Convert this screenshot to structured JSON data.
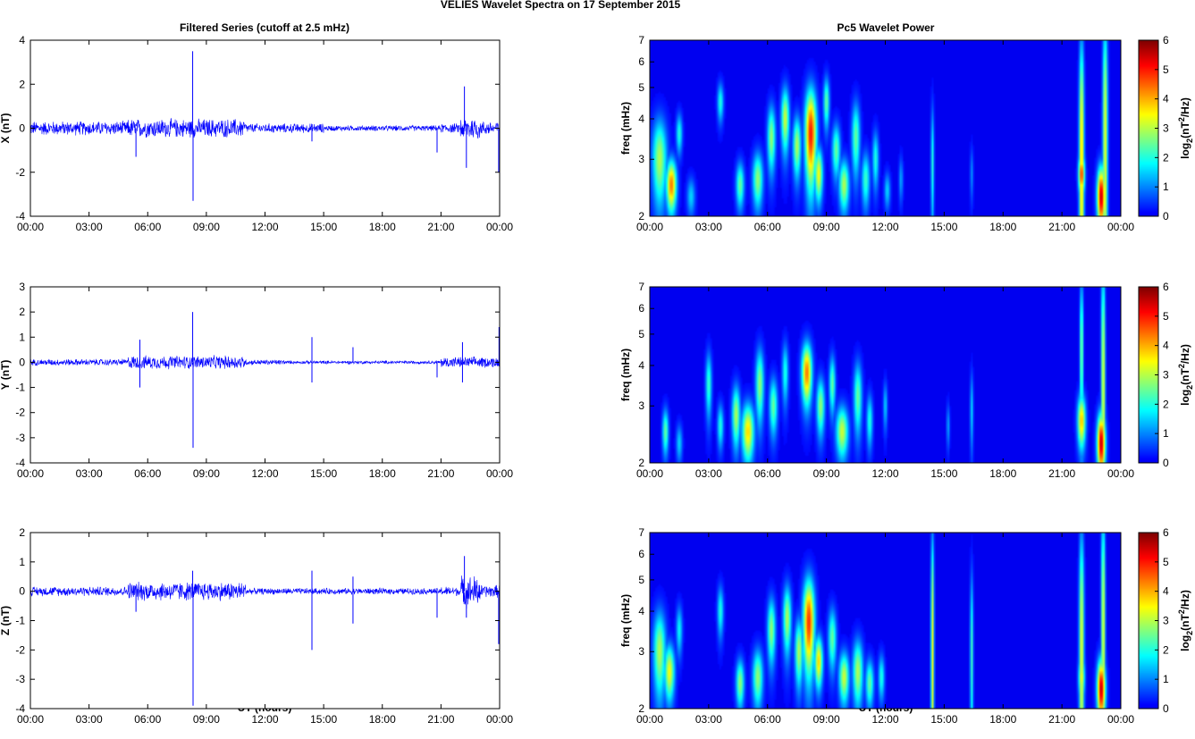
{
  "figure": {
    "suptitle": "VELIES Wavelet Spectra on 17 September 2015",
    "left_title": "Filtered Series (cutoff at 2.5 mHz)",
    "right_title": "Pc5 Wavelet Power",
    "xlabel": "UT (hours)"
  },
  "colors": {
    "trace": "#0000ff",
    "background_low": "#00008f",
    "axes": "#000000"
  },
  "chart_data": [
    {
      "type": "line",
      "ylabel": "X (nT)",
      "xlim_hours": [
        0,
        24
      ],
      "ylim": [
        -4,
        4
      ],
      "yticks": [
        -4,
        -2,
        0,
        2,
        4
      ],
      "xtick_labels": [
        "00:00",
        "03:00",
        "06:00",
        "09:00",
        "12:00",
        "15:00",
        "18:00",
        "21:00",
        "00:00"
      ],
      "noise_amplitude": [
        {
          "from": 0,
          "to": 5,
          "amp": 0.3
        },
        {
          "from": 5,
          "to": 11,
          "amp": 0.4
        },
        {
          "from": 11,
          "to": 15,
          "amp": 0.2
        },
        {
          "from": 15,
          "to": 21,
          "amp": 0.12
        },
        {
          "from": 21,
          "to": 22,
          "amp": 0.2
        },
        {
          "from": 22,
          "to": 23,
          "amp": 0.5
        },
        {
          "from": 23,
          "to": 24,
          "amp": 0.3
        }
      ],
      "spikes": [
        {
          "t": 5.4,
          "v": -1.3
        },
        {
          "t": 8.3,
          "v": 3.5
        },
        {
          "t": 8.32,
          "v": -3.3
        },
        {
          "t": 14.4,
          "v": -0.6
        },
        {
          "t": 20.8,
          "v": -1.1
        },
        {
          "t": 22.2,
          "v": 1.9
        },
        {
          "t": 22.3,
          "v": -1.8
        },
        {
          "t": 23.95,
          "v": -2.0
        }
      ]
    },
    {
      "type": "line",
      "ylabel": "Y (nT)",
      "xlim_hours": [
        0,
        24
      ],
      "ylim": [
        -4,
        3
      ],
      "yticks": [
        -4,
        -3,
        -2,
        -1,
        0,
        1,
        2,
        3
      ],
      "xtick_labels": [
        "00:00",
        "03:00",
        "06:00",
        "09:00",
        "12:00",
        "15:00",
        "18:00",
        "21:00",
        "00:00"
      ],
      "noise_amplitude": [
        {
          "from": 0,
          "to": 5,
          "amp": 0.12
        },
        {
          "from": 5,
          "to": 11,
          "amp": 0.25
        },
        {
          "from": 11,
          "to": 13,
          "amp": 0.1
        },
        {
          "from": 13,
          "to": 21,
          "amp": 0.06
        },
        {
          "from": 21,
          "to": 24,
          "amp": 0.2
        }
      ],
      "spikes": [
        {
          "t": 5.6,
          "v": 0.9
        },
        {
          "t": 5.6,
          "v": -1.0
        },
        {
          "t": 8.3,
          "v": 2.0
        },
        {
          "t": 8.32,
          "v": -3.4
        },
        {
          "t": 14.4,
          "v": 1.0
        },
        {
          "t": 14.4,
          "v": -0.8
        },
        {
          "t": 16.5,
          "v": 0.6
        },
        {
          "t": 20.8,
          "v": -0.6
        },
        {
          "t": 22.1,
          "v": 0.8
        },
        {
          "t": 22.1,
          "v": -0.8
        },
        {
          "t": 23.97,
          "v": 1.4
        }
      ]
    },
    {
      "type": "line",
      "ylabel": "Z (nT)",
      "xlim_hours": [
        0,
        24
      ],
      "ylim": [
        -4,
        2
      ],
      "yticks": [
        -4,
        -3,
        -2,
        -1,
        0,
        1,
        2
      ],
      "xtick_labels": [
        "00:00",
        "03:00",
        "06:00",
        "09:00",
        "12:00",
        "15:00",
        "18:00",
        "21:00",
        "00:00"
      ],
      "noise_amplitude": [
        {
          "from": 0,
          "to": 5,
          "amp": 0.15
        },
        {
          "from": 5,
          "to": 11,
          "amp": 0.3
        },
        {
          "from": 11,
          "to": 21,
          "amp": 0.1
        },
        {
          "from": 21,
          "to": 22,
          "amp": 0.15
        },
        {
          "from": 22,
          "to": 23,
          "amp": 0.5
        },
        {
          "from": 23,
          "to": 24,
          "amp": 0.2
        }
      ],
      "spikes": [
        {
          "t": 5.4,
          "v": -0.7
        },
        {
          "t": 8.3,
          "v": 0.7
        },
        {
          "t": 8.32,
          "v": -3.9
        },
        {
          "t": 14.4,
          "v": 0.7
        },
        {
          "t": 14.4,
          "v": -2.0
        },
        {
          "t": 16.5,
          "v": 0.5
        },
        {
          "t": 16.5,
          "v": -1.1
        },
        {
          "t": 20.8,
          "v": -0.9
        },
        {
          "t": 22.2,
          "v": 1.2
        },
        {
          "t": 22.3,
          "v": -0.9
        },
        {
          "t": 23.95,
          "v": -1.8
        }
      ]
    },
    {
      "type": "heatmap",
      "ylabel": "freq (mHz)",
      "colorbar_label": "log2(nT2/Hz)",
      "xlim_hours": [
        0,
        24
      ],
      "ylim_mhz": [
        2,
        7
      ],
      "yscale": "log",
      "yticks": [
        2,
        3,
        4,
        5,
        6,
        7
      ],
      "clim": [
        0,
        6
      ],
      "colorbar_ticks": [
        0,
        1,
        2,
        3,
        4,
        5,
        6
      ],
      "xtick_labels": [
        "00:00",
        "03:00",
        "06:00",
        "09:00",
        "12:00",
        "15:00",
        "18:00",
        "21:00",
        "00:00"
      ],
      "blobs": [
        {
          "t": 0.5,
          "f": 3.0,
          "dt": 0.35,
          "df": 0.9,
          "p": 3.0
        },
        {
          "t": 1.1,
          "f": 2.5,
          "dt": 0.25,
          "df": 0.45,
          "p": 4.5
        },
        {
          "t": 1.5,
          "f": 3.6,
          "dt": 0.15,
          "df": 0.5,
          "p": 2.0
        },
        {
          "t": 2.1,
          "f": 2.3,
          "dt": 0.2,
          "df": 0.3,
          "p": 1.5
        },
        {
          "t": 3.6,
          "f": 4.5,
          "dt": 0.15,
          "df": 0.6,
          "p": 2.0
        },
        {
          "t": 4.6,
          "f": 2.5,
          "dt": 0.2,
          "df": 0.4,
          "p": 2.5
        },
        {
          "t": 5.5,
          "f": 2.6,
          "dt": 0.25,
          "df": 0.5,
          "p": 2.8
        },
        {
          "t": 6.2,
          "f": 3.5,
          "dt": 0.2,
          "df": 0.8,
          "p": 2.8
        },
        {
          "t": 6.9,
          "f": 4.0,
          "dt": 0.2,
          "df": 0.9,
          "p": 3.2
        },
        {
          "t": 7.5,
          "f": 3.3,
          "dt": 0.2,
          "df": 0.7,
          "p": 3.0
        },
        {
          "t": 8.2,
          "f": 3.6,
          "dt": 0.28,
          "df": 1.2,
          "p": 5.2
        },
        {
          "t": 8.6,
          "f": 2.7,
          "dt": 0.2,
          "df": 0.5,
          "p": 3.5
        },
        {
          "t": 9.0,
          "f": 4.5,
          "dt": 0.15,
          "df": 0.8,
          "p": 2.5
        },
        {
          "t": 9.5,
          "f": 3.2,
          "dt": 0.2,
          "df": 0.6,
          "p": 2.5
        },
        {
          "t": 9.9,
          "f": 2.5,
          "dt": 0.25,
          "df": 0.45,
          "p": 3.0
        },
        {
          "t": 10.5,
          "f": 3.5,
          "dt": 0.2,
          "df": 0.9,
          "p": 2.5
        },
        {
          "t": 11.0,
          "f": 2.6,
          "dt": 0.2,
          "df": 0.5,
          "p": 2.2
        },
        {
          "t": 11.5,
          "f": 3.0,
          "dt": 0.15,
          "df": 0.6,
          "p": 2.0
        },
        {
          "t": 12.1,
          "f": 2.4,
          "dt": 0.15,
          "df": 0.3,
          "p": 1.5
        },
        {
          "t": 12.8,
          "f": 2.6,
          "dt": 0.1,
          "df": 0.4,
          "p": 1.2
        },
        {
          "t": 14.4,
          "f": 2.9,
          "dt": 0.08,
          "df": 1.3,
          "p": 2.0
        },
        {
          "t": 16.4,
          "f": 2.7,
          "dt": 0.08,
          "df": 0.5,
          "p": 1.0
        },
        {
          "t": 22.0,
          "f": 3.0,
          "dt": 0.12,
          "df": 3.5,
          "p": 4.0
        },
        {
          "t": 22.0,
          "f": 2.7,
          "dt": 0.15,
          "df": 0.4,
          "p": 5.0
        },
        {
          "t": 23.2,
          "f": 3.5,
          "dt": 0.12,
          "df": 4.0,
          "p": 3.5
        },
        {
          "t": 23.0,
          "f": 2.3,
          "dt": 0.2,
          "df": 0.5,
          "p": 5.8
        }
      ]
    },
    {
      "type": "heatmap",
      "ylabel": "freq (mHz)",
      "colorbar_label": "log2(nT2/Hz)",
      "xlim_hours": [
        0,
        24
      ],
      "ylim_mhz": [
        2,
        7
      ],
      "yscale": "log",
      "yticks": [
        2,
        3,
        4,
        5,
        6,
        7
      ],
      "clim": [
        0,
        6
      ],
      "colorbar_ticks": [
        0,
        1,
        2,
        3,
        4,
        5,
        6
      ],
      "xtick_labels": [
        "00:00",
        "03:00",
        "06:00",
        "09:00",
        "12:00",
        "15:00",
        "18:00",
        "21:00",
        "00:00"
      ],
      "blobs": [
        {
          "t": 0.8,
          "f": 2.5,
          "dt": 0.15,
          "df": 0.4,
          "p": 2.5
        },
        {
          "t": 1.5,
          "f": 2.3,
          "dt": 0.15,
          "df": 0.3,
          "p": 1.5
        },
        {
          "t": 3.0,
          "f": 3.5,
          "dt": 0.15,
          "df": 0.8,
          "p": 2.2
        },
        {
          "t": 3.6,
          "f": 2.6,
          "dt": 0.15,
          "df": 0.4,
          "p": 2.0
        },
        {
          "t": 4.4,
          "f": 2.8,
          "dt": 0.2,
          "df": 0.6,
          "p": 3.0
        },
        {
          "t": 5.0,
          "f": 2.5,
          "dt": 0.3,
          "df": 0.5,
          "p": 3.8
        },
        {
          "t": 5.6,
          "f": 3.5,
          "dt": 0.2,
          "df": 0.9,
          "p": 2.8
        },
        {
          "t": 6.3,
          "f": 3.0,
          "dt": 0.2,
          "df": 0.6,
          "p": 2.5
        },
        {
          "t": 6.9,
          "f": 3.8,
          "dt": 0.15,
          "df": 0.8,
          "p": 2.0
        },
        {
          "t": 8.0,
          "f": 3.8,
          "dt": 0.25,
          "df": 0.8,
          "p": 4.5
        },
        {
          "t": 8.7,
          "f": 3.0,
          "dt": 0.2,
          "df": 0.6,
          "p": 2.8
        },
        {
          "t": 9.3,
          "f": 3.5,
          "dt": 0.15,
          "df": 0.7,
          "p": 2.5
        },
        {
          "t": 9.8,
          "f": 2.5,
          "dt": 0.3,
          "df": 0.45,
          "p": 3.2
        },
        {
          "t": 10.6,
          "f": 3.2,
          "dt": 0.2,
          "df": 0.8,
          "p": 2.5
        },
        {
          "t": 11.2,
          "f": 2.7,
          "dt": 0.15,
          "df": 0.5,
          "p": 2.0
        },
        {
          "t": 12.0,
          "f": 3.0,
          "dt": 0.1,
          "df": 0.5,
          "p": 1.5
        },
        {
          "t": 15.2,
          "f": 2.6,
          "dt": 0.08,
          "df": 0.4,
          "p": 1.2
        },
        {
          "t": 16.4,
          "f": 2.9,
          "dt": 0.08,
          "df": 0.8,
          "p": 1.5
        },
        {
          "t": 22.0,
          "f": 2.7,
          "dt": 0.2,
          "df": 0.5,
          "p": 4.0
        },
        {
          "t": 22.0,
          "f": 4.5,
          "dt": 0.08,
          "df": 2.5,
          "p": 3.0
        },
        {
          "t": 23.1,
          "f": 3.5,
          "dt": 0.1,
          "df": 4.0,
          "p": 3.5
        },
        {
          "t": 23.0,
          "f": 2.3,
          "dt": 0.2,
          "df": 0.5,
          "p": 5.8
        }
      ]
    },
    {
      "type": "heatmap",
      "ylabel": "freq (mHz)",
      "colorbar_label": "log2(nT2/Hz)",
      "xlim_hours": [
        0,
        24
      ],
      "ylim_mhz": [
        2,
        7
      ],
      "yscale": "log",
      "yticks": [
        2,
        3,
        4,
        5,
        6,
        7
      ],
      "clim": [
        0,
        6
      ],
      "colorbar_ticks": [
        0,
        1,
        2,
        3,
        4,
        5,
        6
      ],
      "xtick_labels": [
        "00:00",
        "03:00",
        "06:00",
        "09:00",
        "12:00",
        "15:00",
        "18:00",
        "21:00",
        "00:00"
      ],
      "blobs": [
        {
          "t": 0.5,
          "f": 3.0,
          "dt": 0.3,
          "df": 0.9,
          "p": 3.0
        },
        {
          "t": 1.0,
          "f": 2.6,
          "dt": 0.25,
          "df": 0.5,
          "p": 3.5
        },
        {
          "t": 1.5,
          "f": 3.5,
          "dt": 0.15,
          "df": 0.6,
          "p": 1.8
        },
        {
          "t": 3.6,
          "f": 4.0,
          "dt": 0.15,
          "df": 0.7,
          "p": 2.0
        },
        {
          "t": 4.6,
          "f": 2.4,
          "dt": 0.2,
          "df": 0.4,
          "p": 2.8
        },
        {
          "t": 5.5,
          "f": 2.5,
          "dt": 0.25,
          "df": 0.5,
          "p": 2.8
        },
        {
          "t": 6.2,
          "f": 3.5,
          "dt": 0.2,
          "df": 0.8,
          "p": 2.8
        },
        {
          "t": 7.0,
          "f": 3.8,
          "dt": 0.2,
          "df": 0.9,
          "p": 3.0
        },
        {
          "t": 7.6,
          "f": 3.0,
          "dt": 0.2,
          "df": 0.7,
          "p": 3.0
        },
        {
          "t": 8.1,
          "f": 3.7,
          "dt": 0.28,
          "df": 1.2,
          "p": 5.0
        },
        {
          "t": 8.6,
          "f": 2.8,
          "dt": 0.2,
          "df": 0.5,
          "p": 3.8
        },
        {
          "t": 9.3,
          "f": 3.3,
          "dt": 0.2,
          "df": 0.7,
          "p": 2.5
        },
        {
          "t": 9.9,
          "f": 2.5,
          "dt": 0.25,
          "df": 0.45,
          "p": 3.2
        },
        {
          "t": 10.6,
          "f": 2.6,
          "dt": 0.25,
          "df": 0.6,
          "p": 3.0
        },
        {
          "t": 11.2,
          "f": 2.4,
          "dt": 0.2,
          "df": 0.4,
          "p": 2.5
        },
        {
          "t": 11.8,
          "f": 2.5,
          "dt": 0.15,
          "df": 0.4,
          "p": 2.0
        },
        {
          "t": 14.4,
          "f": 3.0,
          "dt": 0.08,
          "df": 3.5,
          "p": 3.5
        },
        {
          "t": 16.4,
          "f": 3.0,
          "dt": 0.08,
          "df": 2.0,
          "p": 2.2
        },
        {
          "t": 22.0,
          "f": 3.0,
          "dt": 0.12,
          "df": 3.5,
          "p": 3.5
        },
        {
          "t": 22.0,
          "f": 2.5,
          "dt": 0.15,
          "df": 0.4,
          "p": 3.5
        },
        {
          "t": 23.1,
          "f": 3.5,
          "dt": 0.1,
          "df": 4.0,
          "p": 3.5
        },
        {
          "t": 23.0,
          "f": 2.3,
          "dt": 0.2,
          "df": 0.5,
          "p": 5.8
        }
      ]
    }
  ]
}
